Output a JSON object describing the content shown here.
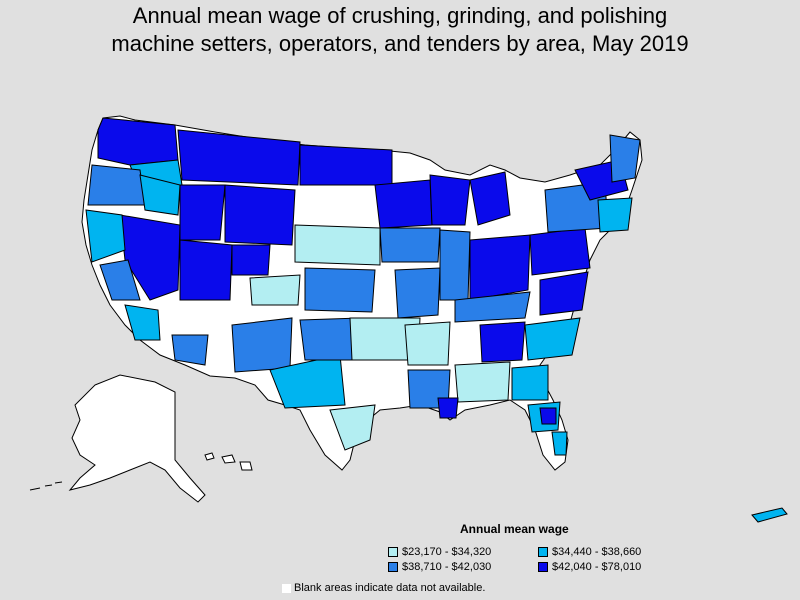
{
  "title": {
    "line1": "Annual mean wage of crushing, grinding, and polishing",
    "line2": "machine setters, operators, and tenders by area, May 2019"
  },
  "legend": {
    "title": "Annual mean wage",
    "items": [
      {
        "label": "$23,170 - $34,320",
        "color": "#b3eef2"
      },
      {
        "label": "$34,440 - $38,660",
        "color": "#00b4f0"
      },
      {
        "label": "$38,710 - $42,030",
        "color": "#2a7fe8"
      },
      {
        "label": "$42,040 - $78,010",
        "color": "#0a0aeb"
      }
    ]
  },
  "note": "Blank areas indicate data not available.",
  "colors": {
    "background": "#e0e0e0",
    "no_data": "#ffffff",
    "outline": "#000000"
  }
}
